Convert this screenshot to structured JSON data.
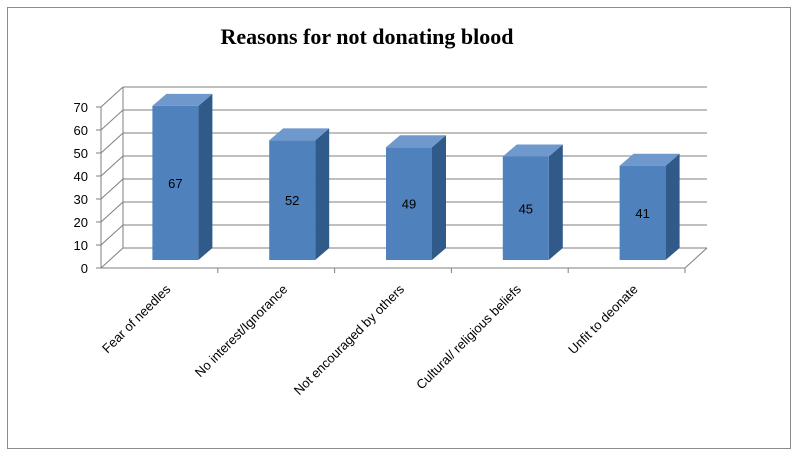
{
  "chart_data": {
    "type": "bar",
    "title": "Reasons for not donating blood",
    "categories": [
      "Fear of needles",
      "No interest/Ignorance",
      "Not encouraged by others",
      "Cultural/ religious beliefs",
      "Unfit to deonate"
    ],
    "values": [
      67,
      52,
      49,
      45,
      41
    ],
    "data_labels": [
      "67",
      "52",
      "49",
      "45",
      "41"
    ],
    "ylim": [
      0,
      70
    ],
    "yticks": [
      "0",
      "10",
      "20",
      "30",
      "40",
      "50",
      "60",
      "70"
    ],
    "grid": true,
    "legend": "none",
    "colors": {
      "bar_front": "#4f81bd",
      "bar_side": "#2f5a89",
      "bar_top": "#6f98cc",
      "gridline": "#7f7f7f"
    }
  }
}
